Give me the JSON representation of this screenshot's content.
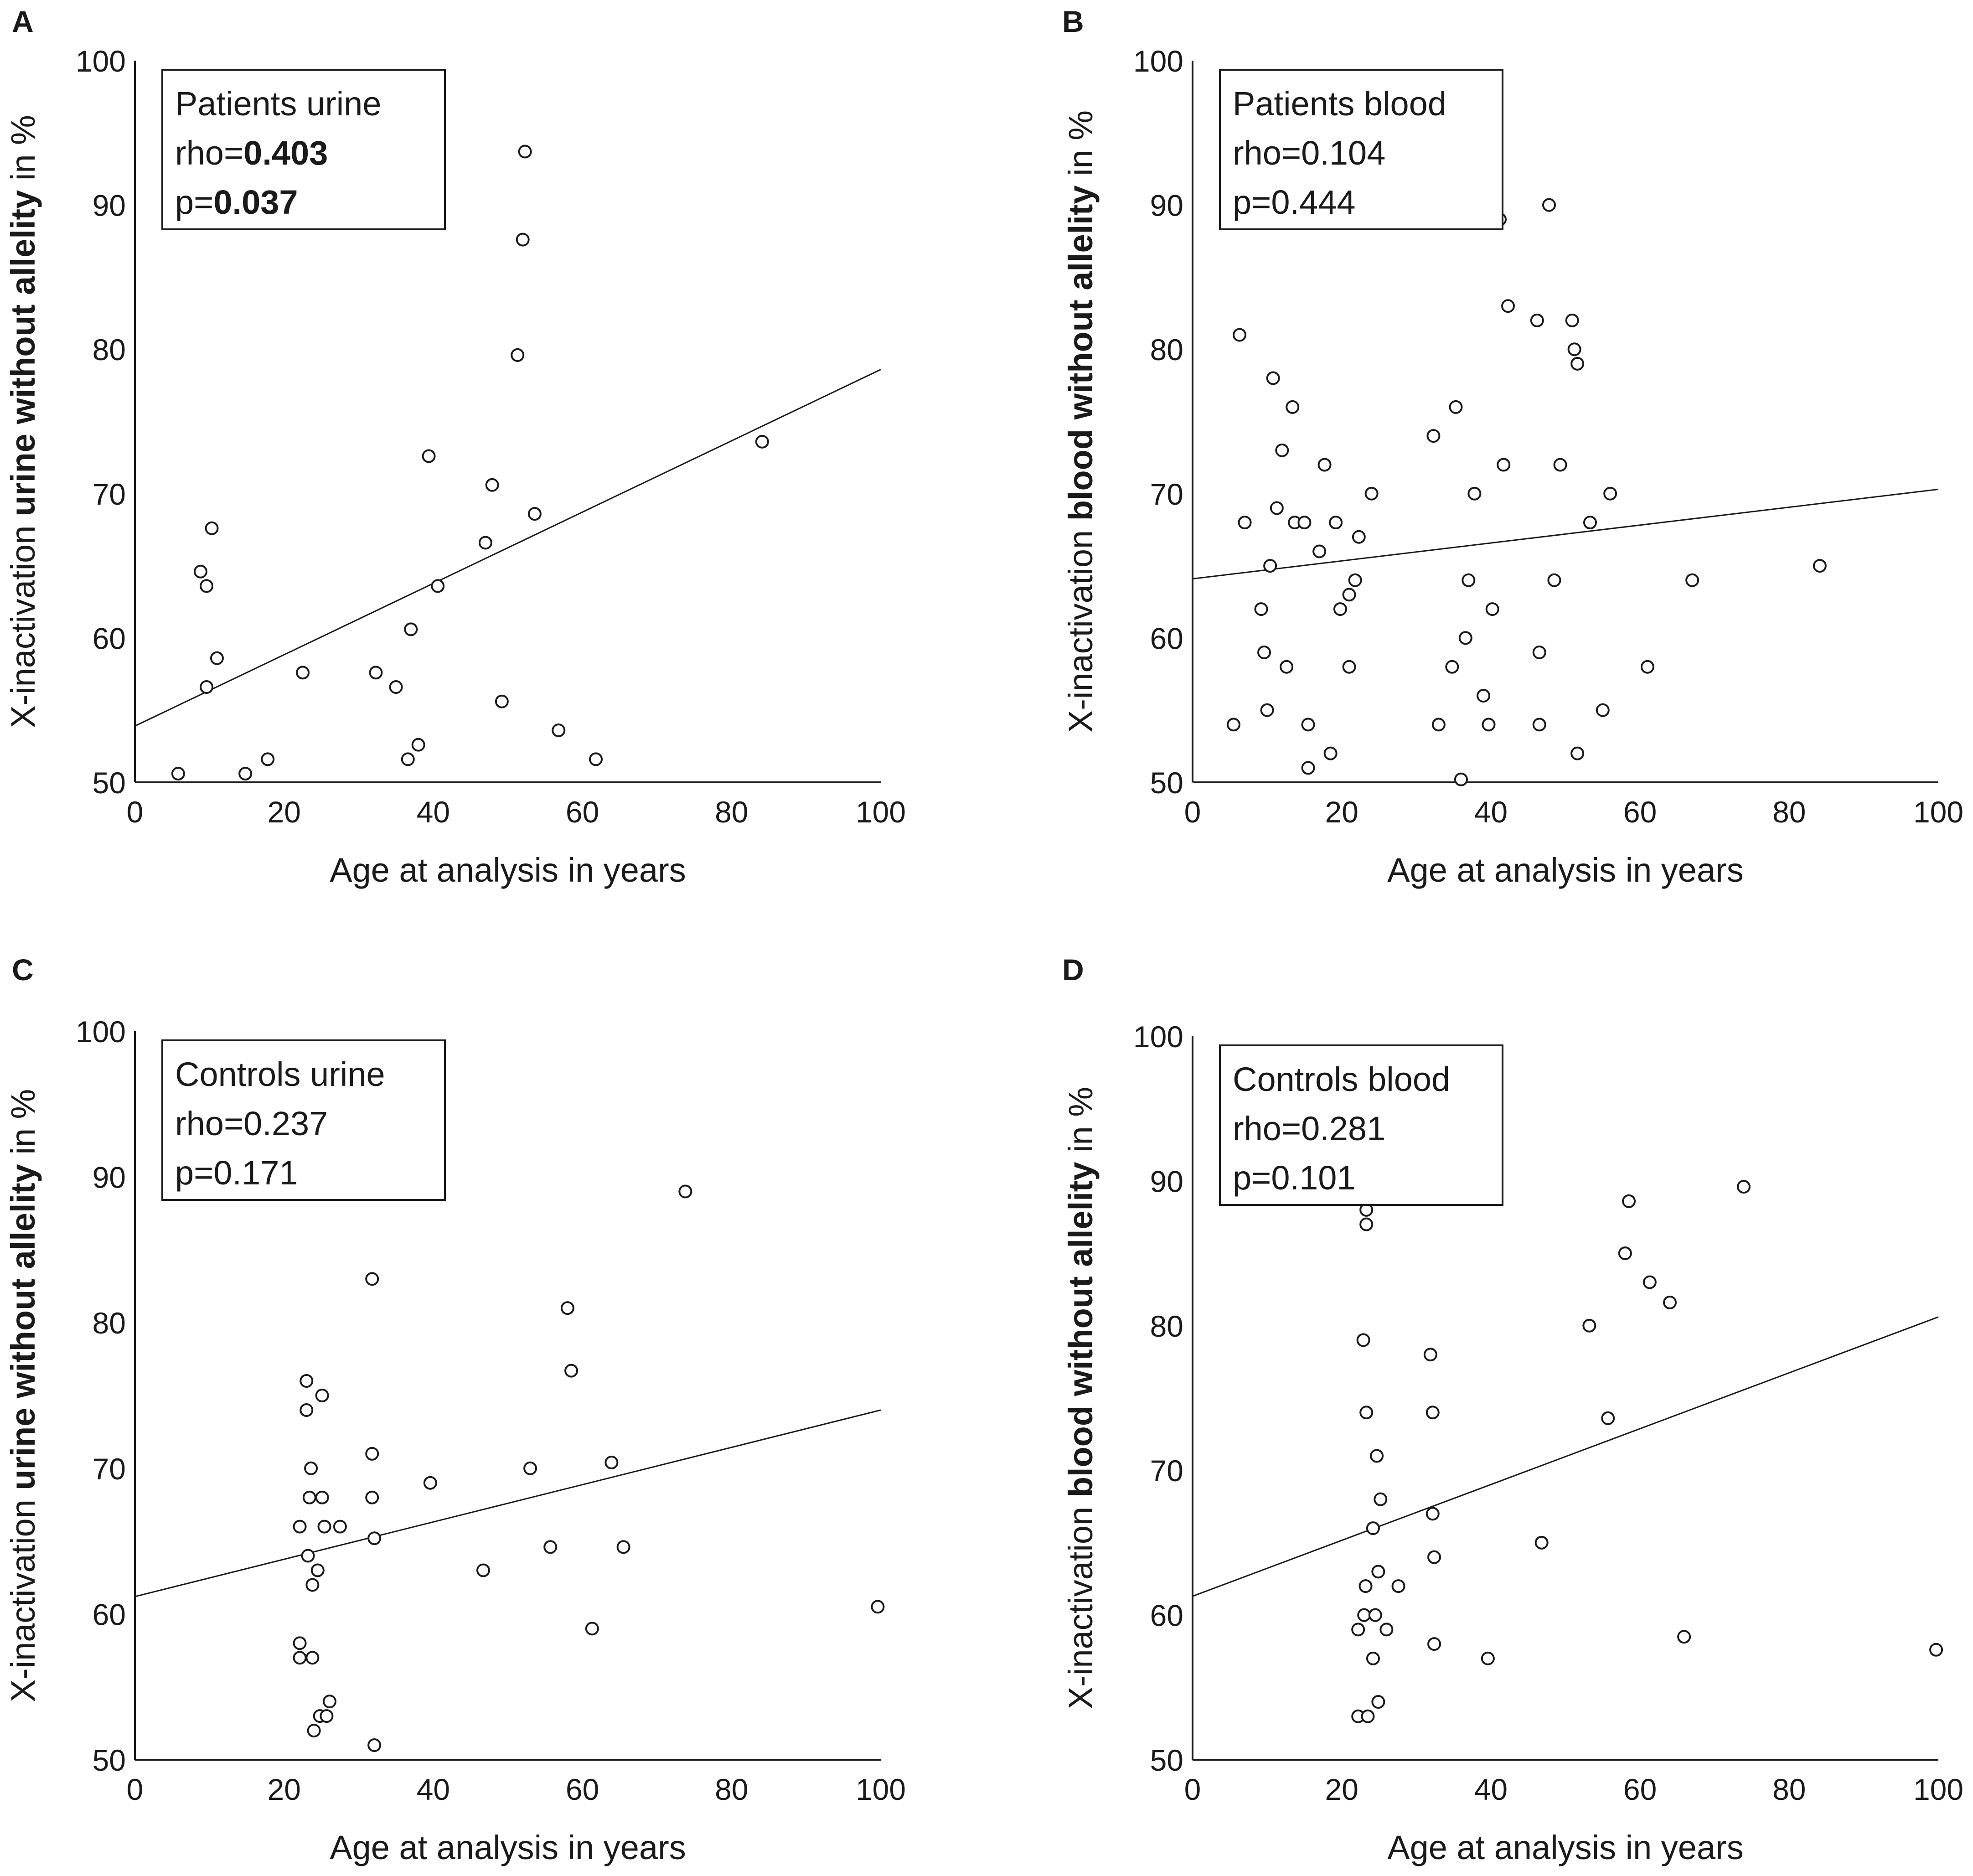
{
  "chart_data": [
    {
      "type": "scatter",
      "panel_letter": "A",
      "stat_title": "Patients urine",
      "rho_prefix": "rho=",
      "rho_value": "0.403",
      "rho_bold": true,
      "p_prefix": "p=",
      "p_value": "0.037",
      "p_bold": true,
      "ylabel_prefix": "X-inactivation ",
      "ylabel_bold": "urine without allelity",
      "ylabel_suffix": " in %",
      "xlabel": "Age at analysis in years",
      "xlim": [
        0,
        100
      ],
      "ylim": [
        50,
        100
      ],
      "x_ticks": [
        "0",
        "20",
        "40",
        "60",
        "80",
        "100"
      ],
      "y_ticks": [
        "50",
        "60",
        "70",
        "80",
        "90",
        "100"
      ],
      "regression": {
        "x": [
          0,
          100
        ],
        "y": [
          53.9,
          78.6
        ]
      },
      "points": [
        [
          5.8,
          50.6
        ],
        [
          14.8,
          50.6
        ],
        [
          17.8,
          51.6
        ],
        [
          8.8,
          64.6
        ],
        [
          9.6,
          63.6
        ],
        [
          10.3,
          67.6
        ],
        [
          9.6,
          56.6
        ],
        [
          11.0,
          58.6
        ],
        [
          22.5,
          57.6
        ],
        [
          32.3,
          57.6
        ],
        [
          35.0,
          56.6
        ],
        [
          36.6,
          51.6
        ],
        [
          37.0,
          60.6
        ],
        [
          38.0,
          52.6
        ],
        [
          39.4,
          72.6
        ],
        [
          40.6,
          63.6
        ],
        [
          47.0,
          66.6
        ],
        [
          47.9,
          70.6
        ],
        [
          49.2,
          55.6
        ],
        [
          53.6,
          68.6
        ],
        [
          56.8,
          53.6
        ],
        [
          61.8,
          51.6
        ],
        [
          51.3,
          79.6
        ],
        [
          52.0,
          87.6
        ],
        [
          52.3,
          93.7
        ],
        [
          84.1,
          73.6
        ]
      ]
    },
    {
      "type": "scatter",
      "panel_letter": "B",
      "stat_title": "Patients blood",
      "rho_prefix": "rho=",
      "rho_value": "0.104",
      "rho_bold": false,
      "p_prefix": "p=",
      "p_value": "0.444",
      "p_bold": false,
      "ylabel_prefix": "X-inactivation ",
      "ylabel_bold": "blood without allelity",
      "ylabel_suffix": " in %",
      "xlabel": "Age at analysis in years",
      "xlim": [
        0,
        100
      ],
      "ylim": [
        50,
        100
      ],
      "x_ticks": [
        "0",
        "20",
        "40",
        "60",
        "80",
        "100"
      ],
      "y_ticks": [
        "50",
        "60",
        "70",
        "80",
        "90",
        "100"
      ],
      "regression": {
        "x": [
          0,
          100
        ],
        "y": [
          64.1,
          70.3
        ]
      },
      "points": [
        [
          5.5,
          54.0
        ],
        [
          6.3,
          81.0
        ],
        [
          7.0,
          68.0
        ],
        [
          9.2,
          62.0
        ],
        [
          9.6,
          59.0
        ],
        [
          10.0,
          55.0
        ],
        [
          10.4,
          65.0
        ],
        [
          10.8,
          78.0
        ],
        [
          11.3,
          69.0
        ],
        [
          12.0,
          73.0
        ],
        [
          12.6,
          58.0
        ],
        [
          13.4,
          76.0
        ],
        [
          13.7,
          68.0
        ],
        [
          15.0,
          68.0
        ],
        [
          15.5,
          54.0
        ],
        [
          15.5,
          51.0
        ],
        [
          17.0,
          66.0
        ],
        [
          17.7,
          72.0
        ],
        [
          18.5,
          52.0
        ],
        [
          19.2,
          68.0
        ],
        [
          19.8,
          62.0
        ],
        [
          21.0,
          63.0
        ],
        [
          21.0,
          58.0
        ],
        [
          21.8,
          64.0
        ],
        [
          22.3,
          67.0
        ],
        [
          24.0,
          70.0
        ],
        [
          32.3,
          74.0
        ],
        [
          33.0,
          54.0
        ],
        [
          34.8,
          58.0
        ],
        [
          35.3,
          76.0
        ],
        [
          36.0,
          50.2
        ],
        [
          36.6,
          60.0
        ],
        [
          37.0,
          64.0
        ],
        [
          37.8,
          70.0
        ],
        [
          39.0,
          56.0
        ],
        [
          39.7,
          54.0
        ],
        [
          40.2,
          62.0
        ],
        [
          41.2,
          89.0
        ],
        [
          41.7,
          72.0
        ],
        [
          42.3,
          83.0
        ],
        [
          46.2,
          82.0
        ],
        [
          46.5,
          59.0
        ],
        [
          46.5,
          54.0
        ],
        [
          47.8,
          90.0
        ],
        [
          48.5,
          64.0
        ],
        [
          49.3,
          72.0
        ],
        [
          50.9,
          82.0
        ],
        [
          51.2,
          80.0
        ],
        [
          51.6,
          79.0
        ],
        [
          51.6,
          52.0
        ],
        [
          53.3,
          68.0
        ],
        [
          55.0,
          55.0
        ],
        [
          56.0,
          70.0
        ],
        [
          61.0,
          58.0
        ],
        [
          67.0,
          64.0
        ],
        [
          84.1,
          65.0
        ]
      ]
    },
    {
      "type": "scatter",
      "panel_letter": "C",
      "stat_title": "Controls urine",
      "rho_prefix": "rho=",
      "rho_value": "0.237",
      "rho_bold": false,
      "p_prefix": "p=",
      "p_value": "0.171",
      "p_bold": false,
      "ylabel_prefix": "X-inactivation ",
      "ylabel_bold": "urine without allelity",
      "ylabel_suffix": " in %",
      "xlabel": "Age at analysis in years",
      "xlim": [
        0,
        100
      ],
      "ylim": [
        50,
        100
      ],
      "x_ticks": [
        "0",
        "20",
        "40",
        "60",
        "80",
        "100"
      ],
      "y_ticks": [
        "50",
        "60",
        "70",
        "80",
        "90",
        "100"
      ],
      "regression": {
        "x": [
          0,
          100
        ],
        "y": [
          61.2,
          74.0
        ]
      },
      "points": [
        [
          22.1,
          66.0
        ],
        [
          22.1,
          58.0
        ],
        [
          22.1,
          57.0
        ],
        [
          23.0,
          76.0
        ],
        [
          23.0,
          74.0
        ],
        [
          23.2,
          64.0
        ],
        [
          23.4,
          68.0
        ],
        [
          23.6,
          70.0
        ],
        [
          23.8,
          62.0
        ],
        [
          23.8,
          57.0
        ],
        [
          24.0,
          52.0
        ],
        [
          24.5,
          63.0
        ],
        [
          24.8,
          53.0
        ],
        [
          25.1,
          75.0
        ],
        [
          25.1,
          68.0
        ],
        [
          25.4,
          66.0
        ],
        [
          25.7,
          53.0
        ],
        [
          26.1,
          54.0
        ],
        [
          27.5,
          66.0
        ],
        [
          31.8,
          83.0
        ],
        [
          31.8,
          71.0
        ],
        [
          31.8,
          68.0
        ],
        [
          32.1,
          65.2
        ],
        [
          32.1,
          51.0
        ],
        [
          39.6,
          69.0
        ],
        [
          46.7,
          63.0
        ],
        [
          53.0,
          70.0
        ],
        [
          55.7,
          64.6
        ],
        [
          58.0,
          81.0
        ],
        [
          58.5,
          76.7
        ],
        [
          61.3,
          59.0
        ],
        [
          63.9,
          70.4
        ],
        [
          65.5,
          64.6
        ],
        [
          73.8,
          89.0
        ],
        [
          99.6,
          60.5
        ]
      ]
    },
    {
      "type": "scatter",
      "panel_letter": "D",
      "stat_title": "Controls blood",
      "rho_prefix": "rho=",
      "rho_value": "0.281",
      "rho_bold": false,
      "p_prefix": "p=",
      "p_value": "0.101",
      "p_bold": false,
      "ylabel_prefix": "X-inactivation ",
      "ylabel_bold": "blood without allelity",
      "ylabel_suffix": " in %",
      "xlabel": "Age at analysis in years",
      "xlim": [
        0,
        100
      ],
      "ylim": [
        50,
        100
      ],
      "x_ticks": [
        "0",
        "20",
        "40",
        "60",
        "80",
        "100"
      ],
      "y_ticks": [
        "50",
        "60",
        "70",
        "80",
        "90",
        "100"
      ],
      "regression": {
        "x": [
          0,
          100
        ],
        "y": [
          61.3,
          80.6
        ]
      },
      "points": [
        [
          22.2,
          59.0
        ],
        [
          22.2,
          53.0
        ],
        [
          22.9,
          79.0
        ],
        [
          23.0,
          60.0
        ],
        [
          23.2,
          62.0
        ],
        [
          23.3,
          88.0
        ],
        [
          23.3,
          87.0
        ],
        [
          23.3,
          74.0
        ],
        [
          23.5,
          53.0
        ],
        [
          24.2,
          66.0
        ],
        [
          24.2,
          57.0
        ],
        [
          24.5,
          60.0
        ],
        [
          24.7,
          71.0
        ],
        [
          24.9,
          63.0
        ],
        [
          24.9,
          54.0
        ],
        [
          25.2,
          68.0
        ],
        [
          26.0,
          59.0
        ],
        [
          27.6,
          62.0
        ],
        [
          31.9,
          78.0
        ],
        [
          32.2,
          74.0
        ],
        [
          32.2,
          67.0
        ],
        [
          32.4,
          64.0
        ],
        [
          32.4,
          58.0
        ],
        [
          39.6,
          57.0
        ],
        [
          46.8,
          65.0
        ],
        [
          53.2,
          80.0
        ],
        [
          55.7,
          73.6
        ],
        [
          58.0,
          85.0
        ],
        [
          58.5,
          88.6
        ],
        [
          61.3,
          83.0
        ],
        [
          64.0,
          81.6
        ],
        [
          65.9,
          58.5
        ],
        [
          73.9,
          89.6
        ],
        [
          99.7,
          57.6
        ]
      ]
    }
  ]
}
